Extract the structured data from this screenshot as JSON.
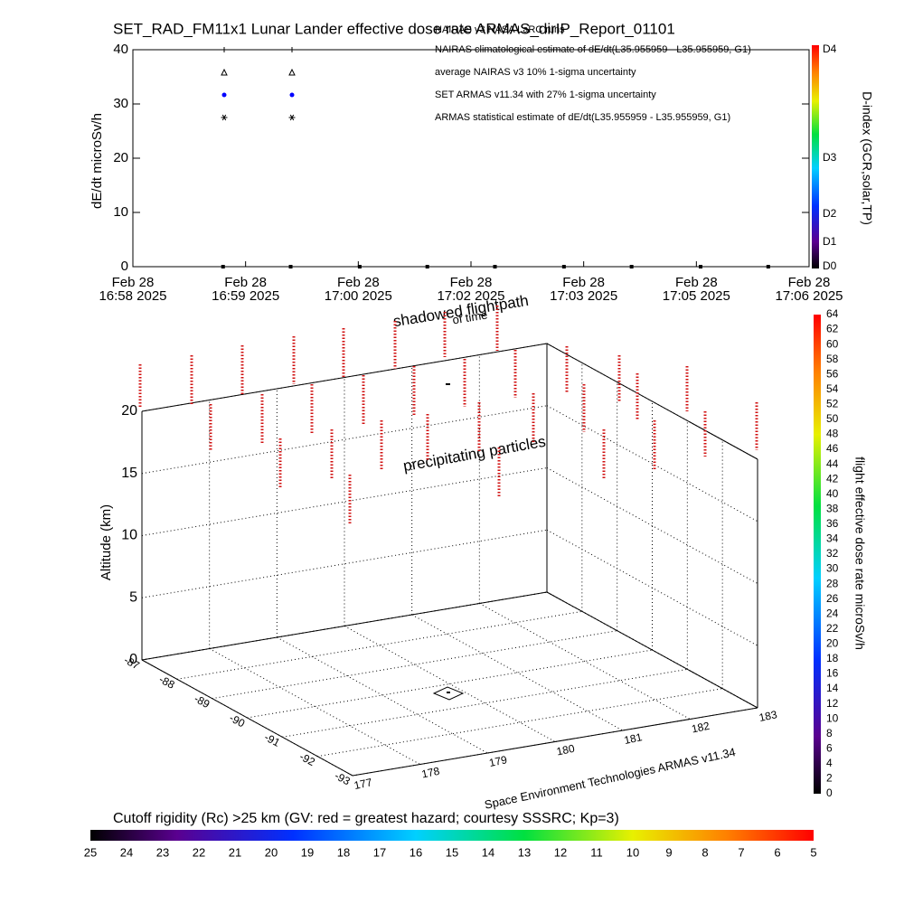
{
  "chart_data": [
    {
      "type": "scatter",
      "title": "SET_RAD_FM11x1  Lunar Lander effective dose rate ARMAS_dirIP_Report_01101",
      "ylabel": "dE/dt microSv/h",
      "x": [
        "2025-02-28T16:59:04",
        "2025-02-28T16:59:52",
        "2025-02-28T17:00:41",
        "2025-02-28T17:01:29",
        "2025-02-28T17:02:17",
        "2025-02-28T17:03:06",
        "2025-02-28T17:03:54",
        "2025-02-28T17:04:43",
        "2025-02-28T17:05:31"
      ],
      "values": [
        0,
        0,
        0,
        0,
        0,
        0,
        0,
        0,
        0
      ],
      "color": "#000000",
      "xlim": [
        "2025-02-28T16:58:00",
        "2025-02-28T17:06:00"
      ],
      "xticks": [
        {
          "value": "2025-02-28T16:58:00",
          "label": "Feb 28\n16:58 2025"
        },
        {
          "value": "2025-02-28T16:59:20",
          "label": "Feb 28\n16:59 2025"
        },
        {
          "value": "2025-02-28T17:00:40",
          "label": "Feb 28\n17:00 2025"
        },
        {
          "value": "2025-02-28T17:02:00",
          "label": "Feb 28\n17:02 2025"
        },
        {
          "value": "2025-02-28T17:03:20",
          "label": "Feb 28\n17:03 2025"
        },
        {
          "value": "2025-02-28T17:04:40",
          "label": "Feb 28\n17:05 2025"
        },
        {
          "value": "2025-02-28T17:06:00",
          "label": "Feb 28\n17:06 2025"
        }
      ],
      "ylim": [
        0,
        40
      ],
      "yticks": [
        0,
        10,
        20,
        30,
        40
      ],
      "legend": [
        {
          "label": "NAIRAS v3 NASA LaRC runs"
        },
        {
          "label": "NAIRAS climatological estimate of dE/dt(L35.955959 - L35.955959, G1)",
          "marker": "plus",
          "color": "#000000"
        },
        {
          "label": "average NAIRAS v3 10% 1-sigma uncertainty",
          "marker": "triangle",
          "color": "#000000"
        },
        {
          "label": "SET ARMAS v11.34 with 27% 1-sigma uncertainty",
          "marker": "dot",
          "color": "#0000ff"
        },
        {
          "label": "ARMAS statistical estimate of dE/dt(L35.955959 - L35.955959, G1)",
          "marker": "asterisk",
          "color": "#000000"
        }
      ],
      "colorbar": {
        "label": "D-index (GCR,solar,TP)",
        "ticks": [
          "D0",
          "D1",
          "D2",
          "D3",
          "D4"
        ]
      }
    },
    {
      "type": "scatter3d",
      "zlabel": "Altitude (km)",
      "zlim": [
        0,
        20
      ],
      "zticks": [
        0,
        5,
        10,
        15,
        20
      ],
      "xlim": [
        -87,
        -93
      ],
      "xticks": [
        -87,
        -88,
        -89,
        -90,
        -91,
        -92,
        -93
      ],
      "ylim": [
        177,
        183
      ],
      "yticks": [
        177,
        178,
        179,
        180,
        181,
        182,
        183
      ],
      "annotations": [
        "shadowed flightpath",
        "of time",
        "precipitating particles",
        "Space Environment Technologies ARMAS v11.34"
      ],
      "colorbar": {
        "label": "flight effective dose rate microSv/h",
        "lim": [
          0,
          64
        ],
        "ticks": [
          0,
          2,
          4,
          6,
          8,
          10,
          12,
          14,
          16,
          18,
          20,
          22,
          24,
          26,
          28,
          30,
          32,
          34,
          36,
          38,
          40,
          42,
          44,
          46,
          48,
          50,
          52,
          54,
          56,
          58,
          60,
          62,
          64
        ]
      }
    },
    {
      "type": "colorbar",
      "label": "Cutoff rigidity (Rc) >25 km (GV: red = greatest hazard; courtesy SSSRC; Kp=3)",
      "lim": [
        25,
        5
      ],
      "ticks": [
        25,
        24,
        23,
        22,
        21,
        20,
        19,
        18,
        17,
        16,
        15,
        14,
        13,
        12,
        11,
        10,
        9,
        8,
        7,
        6,
        5
      ]
    }
  ]
}
